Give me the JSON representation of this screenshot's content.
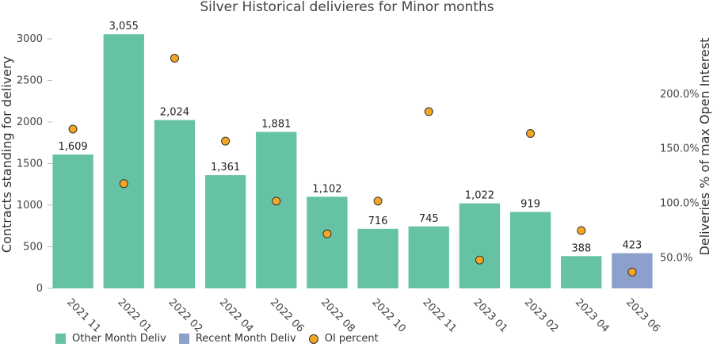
{
  "chart_data": {
    "type": "bar",
    "title": "Silver Historical delivieres for Minor months",
    "ylabel": "Contracts standing for delivery",
    "y2label": "Deliveries % of max Open Interest",
    "categories": [
      "2021 11",
      "2022 01",
      "2022 02",
      "2022 04",
      "2022 06",
      "2022 08",
      "2022 10",
      "2022 11",
      "2023 01",
      "2023 02",
      "2023 04",
      "2023 06"
    ],
    "values": [
      1609,
      3055,
      2024,
      1361,
      1881,
      1102,
      716,
      745,
      1022,
      919,
      388,
      423
    ],
    "value_labels": [
      "1,609",
      "3,055",
      "2,024",
      "1,361",
      "1,881",
      "1,102",
      "716",
      "745",
      "1,022",
      "919",
      "388",
      "423"
    ],
    "series_group": [
      "other",
      "other",
      "other",
      "other",
      "other",
      "other",
      "other",
      "other",
      "other",
      "other",
      "other",
      "recent"
    ],
    "oi_percent": [
      168,
      118,
      233,
      157,
      102,
      72,
      102,
      184,
      48,
      164,
      75,
      37
    ],
    "ylim": [
      0,
      3200
    ],
    "yticks": [
      0,
      500,
      1000,
      1500,
      2000,
      2500,
      3000
    ],
    "yticks_labels": [
      "0",
      "500",
      "1000",
      "1500",
      "2000",
      "2500",
      "3000"
    ],
    "y2lim": [
      22,
      266
    ],
    "y2ticks": [
      50,
      100,
      150,
      200
    ],
    "y2ticks_labels": [
      "50.0%",
      "100.0%",
      "150.0%",
      "200.0%"
    ],
    "legend": [
      {
        "name": "Other Month Deliv",
        "kind": "bar",
        "color": "#66c2a5"
      },
      {
        "name": "Recent Month Deliv",
        "kind": "bar",
        "color": "#8da0cb"
      },
      {
        "name": "OI percent",
        "kind": "marker",
        "color": "#f5a623"
      }
    ],
    "legend_position": "bottom-left",
    "colors": {
      "other": "#66c2a5",
      "recent": "#8da0cb",
      "marker": "#f5a623"
    }
  }
}
